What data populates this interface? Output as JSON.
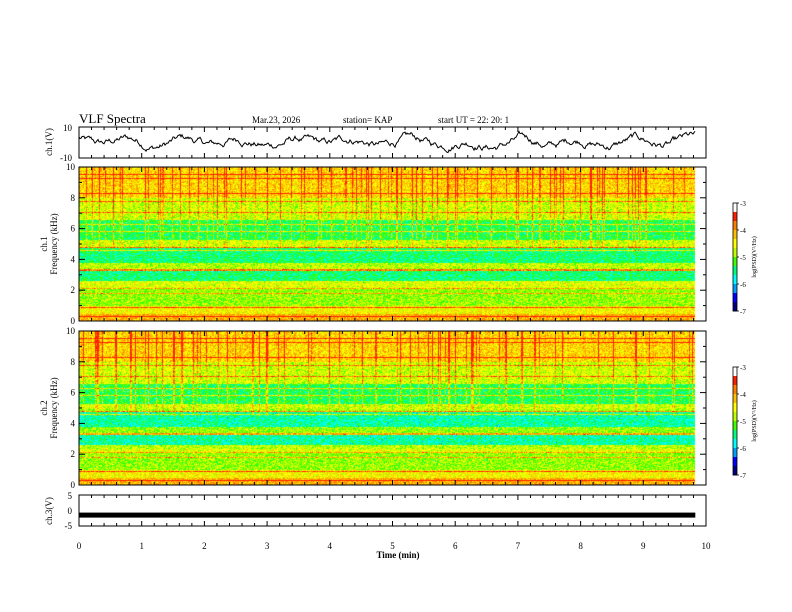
{
  "header": {
    "title": "VLF Spectra",
    "date": "Mar.23, 2026",
    "station": "station= KAP",
    "start": "start  UT  =   22: 20: 1"
  },
  "chart_data": [
    {
      "type": "line",
      "name": "ch1-waveform",
      "ylabel": "ch.1(V)",
      "ylim": [
        -10,
        10
      ],
      "yticks": [
        "10",
        "-10"
      ],
      "x_range_min": [
        0,
        9.83
      ]
    },
    {
      "type": "heatmap",
      "name": "ch1-spectrogram",
      "ylabel_channel": "ch.1",
      "ylabel": "Frequency (kHz)",
      "ylim": [
        0,
        10
      ],
      "yticks": [
        "0",
        "2",
        "4",
        "6",
        "8",
        "10"
      ],
      "colorbar": {
        "label": "log(PSD)(V²/Hz)",
        "range": [
          -7,
          -3
        ],
        "ticks": [
          "-3",
          "-4",
          "-5",
          "-6",
          "-7"
        ],
        "colors": [
          "#000080",
          "#0000ff",
          "#00a0ff",
          "#00ffff",
          "#00ff80",
          "#40ff00",
          "#c0ff00",
          "#ffff00",
          "#ffc000",
          "#ff8000",
          "#ff2000",
          "#ffffff"
        ]
      }
    },
    {
      "type": "heatmap",
      "name": "ch2-spectrogram",
      "ylabel_channel": "ch.2",
      "ylabel": "Frequency (kHz)",
      "ylim": [
        0,
        10
      ],
      "yticks": [
        "0",
        "2",
        "4",
        "6",
        "8",
        "10"
      ],
      "colorbar": {
        "label": "log(PSD)(V²/Hz)",
        "range": [
          -7,
          -3
        ],
        "ticks": [
          "-3",
          "-4",
          "-5",
          "-6",
          "-7"
        ]
      }
    },
    {
      "type": "line",
      "name": "ch3-signal",
      "ylabel": "ch.3(V)",
      "ylim": [
        -5,
        5
      ],
      "yticks": [
        "5",
        "0",
        "-5"
      ],
      "level": -1.5
    }
  ],
  "xaxis": {
    "label": "Time (min)",
    "range": [
      0,
      10
    ],
    "ticks": [
      "0",
      "1",
      "2",
      "3",
      "4",
      "5",
      "6",
      "7",
      "8",
      "9",
      "10"
    ]
  }
}
